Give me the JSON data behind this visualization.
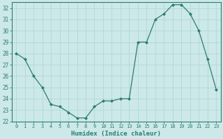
{
  "x": [
    0,
    1,
    2,
    3,
    4,
    5,
    6,
    7,
    8,
    9,
    10,
    11,
    12,
    13,
    14,
    15,
    16,
    17,
    18,
    19,
    20,
    21,
    22,
    23
  ],
  "y": [
    28,
    27.5,
    26,
    25,
    23.5,
    23.3,
    22.8,
    22.3,
    22.3,
    23.3,
    23.8,
    23.8,
    24,
    24,
    29,
    29,
    31,
    31.5,
    32.3,
    32.3,
    31.5,
    30,
    27.5,
    24.8
  ],
  "xlabel": "Humidex (Indice chaleur)",
  "ylim": [
    22,
    32.5
  ],
  "xlim": [
    -0.5,
    23.5
  ],
  "yticks": [
    22,
    23,
    24,
    25,
    26,
    27,
    28,
    29,
    30,
    31,
    32
  ],
  "xticks": [
    0,
    1,
    2,
    3,
    4,
    5,
    6,
    7,
    8,
    9,
    10,
    11,
    12,
    13,
    14,
    15,
    16,
    17,
    18,
    19,
    20,
    21,
    22,
    23
  ],
  "line_color": "#2d7d6e",
  "marker_color": "#2d7d6e",
  "bg_color": "#cce8e8",
  "grid_color": "#b0d8d8",
  "spine_color": "#2d7d6e",
  "font_color": "#2d7d6e"
}
